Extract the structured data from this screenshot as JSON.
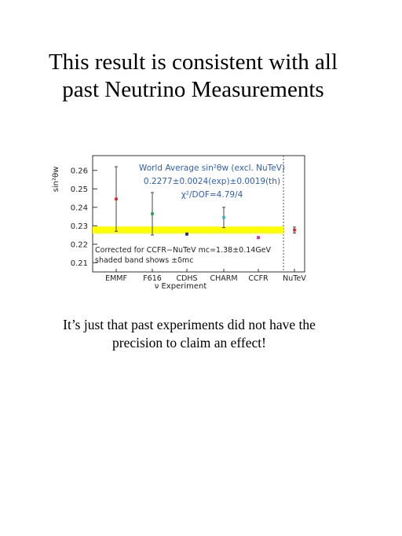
{
  "slide": {
    "title_line1": "This result is consistent with all",
    "title_line2": "past Neutrino Measurements",
    "caption_line1": "It’s just that past experiments did not have the",
    "caption_line2": "precision to claim an effect!"
  },
  "chart_data": {
    "type": "scatter",
    "title": "",
    "ylabel": "sin²θw",
    "xlabel": "ν Experiment",
    "ylim": [
      0.205,
      0.268
    ],
    "yticks": [
      "0.21",
      "0.22",
      "0.23",
      "0.24",
      "0.25",
      "0.26"
    ],
    "categories": [
      "EMMF",
      "F616",
      "CDHS",
      "CHARM",
      "CCFR",
      "NuTeV"
    ],
    "points": [
      {
        "category": "EMMF",
        "value": 0.2445,
        "error": 0.0175,
        "color": "#e02020"
      },
      {
        "category": "F616",
        "value": 0.2365,
        "error": 0.0115,
        "color": "#20a040"
      },
      {
        "category": "CDHS",
        "value": 0.2255,
        "error": 0.0006,
        "color": "#1a2a90"
      },
      {
        "category": "CHARM",
        "value": 0.2345,
        "error": 0.0055,
        "color": "#30b0e0"
      },
      {
        "category": "CCFR",
        "value": 0.2236,
        "error": 0.0006,
        "color": "#e020c0"
      },
      {
        "category": "NuTeV",
        "value": 0.2277,
        "error": 0.0016,
        "color": "#e02020"
      }
    ],
    "band": {
      "low": 0.2258,
      "high": 0.2296,
      "color": "#ffff00"
    },
    "annotations": {
      "world_average_line1": "World Average sin²θw (excl. NuTeV)",
      "world_average_line2": "0.2277±0.0024(exp)±0.0019(th)",
      "world_average_line3": "χ²/DOF=4.79/4",
      "note_line1": "Corrected for CCFR−NuTeV mc=1.38±0.14GeV",
      "note_line2": "shaded band shows ±δmc"
    },
    "grid": false,
    "legend": "none"
  }
}
